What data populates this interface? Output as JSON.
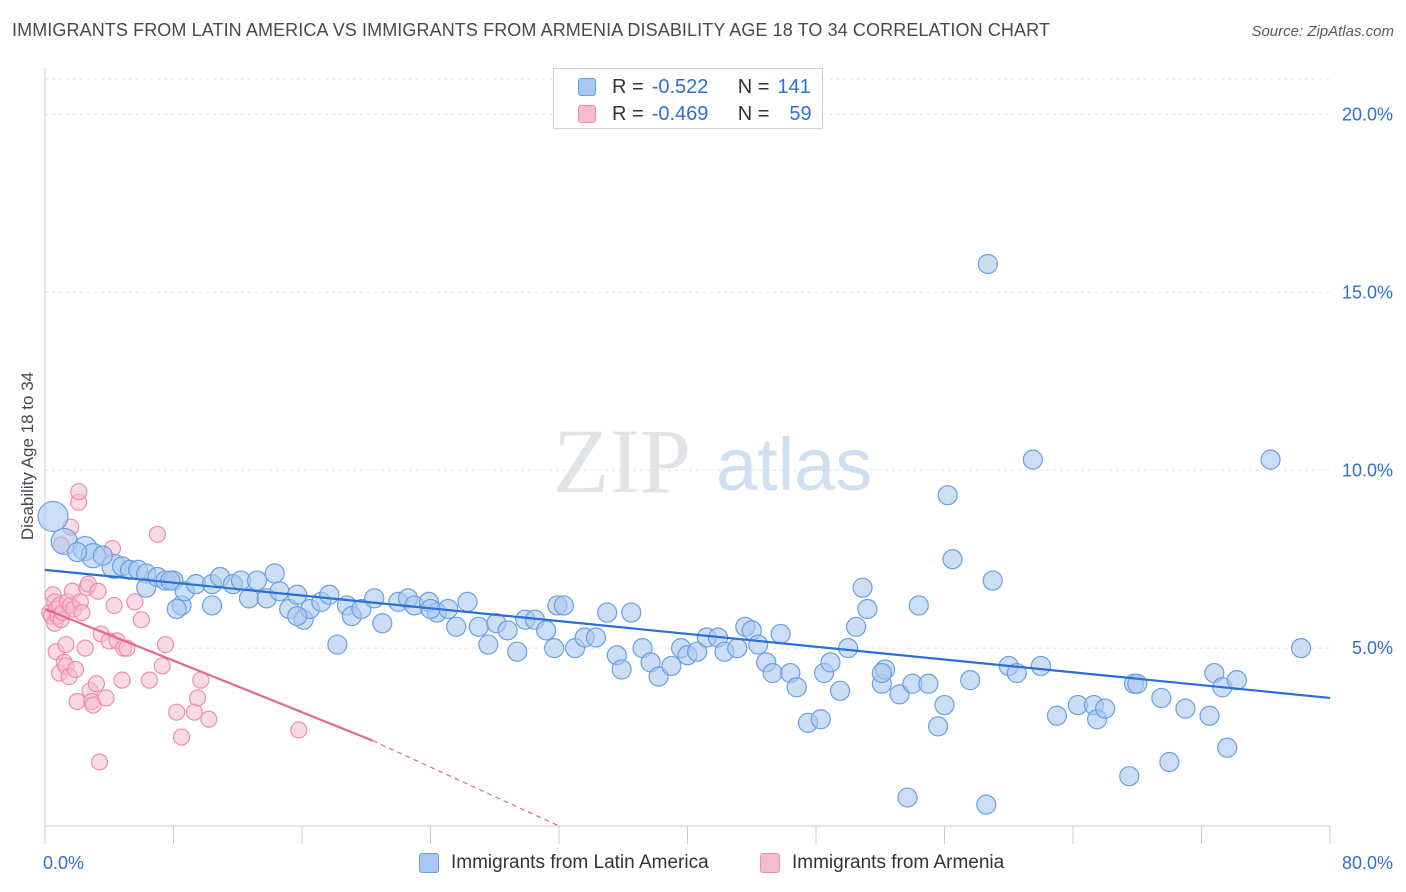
{
  "header": {
    "title": "IMMIGRANTS FROM LATIN AMERICA VS IMMIGRANTS FROM ARMENIA DISABILITY AGE 18 TO 34 CORRELATION CHART",
    "source": "Source: ZipAtlas.com"
  },
  "legend_stats": {
    "blue": {
      "r_label": "R =",
      "r_value": "-0.522",
      "n_label": "N =",
      "n_value": "141"
    },
    "pink": {
      "r_label": "R =",
      "r_value": "-0.469",
      "n_label": "N =",
      "n_value": "59"
    }
  },
  "colors": {
    "blue_fill": "#a9c8f0",
    "blue_stroke": "#6b9fe0",
    "blue_line": "#2a6fd6",
    "pink_fill": "#f6bccd",
    "pink_stroke": "#ec8fac",
    "pink_line": "#e2688f",
    "axis_label": "#2f6fd0",
    "grid": "#dde1e6"
  },
  "watermark": {
    "zip": "ZIP",
    "atlas": "atlas"
  },
  "chart_data": {
    "type": "scatter",
    "title": "IMMIGRANTS FROM LATIN AMERICA VS IMMIGRANTS FROM ARMENIA DISABILITY AGE 18 TO 34 CORRELATION CHART",
    "xlabel": "",
    "ylabel": "Disability Age 18 to 34",
    "xlim": [
      0,
      80
    ],
    "ylim": [
      0,
      21
    ],
    "x_tick_labels": [
      "0.0%",
      "80.0%"
    ],
    "y_ticks": [
      5,
      10,
      15,
      20
    ],
    "y_tick_labels": [
      "5.0%",
      "10.0%",
      "15.0%",
      "20.0%"
    ],
    "grid": "horizontal dashed",
    "legend_position": "bottom",
    "series": [
      {
        "name": "Immigrants from Latin America",
        "color": "#a9c8f0",
        "trend": {
          "x": [
            0,
            80
          ],
          "y": [
            7.2,
            3.6
          ]
        },
        "points": [
          [
            0.5,
            8.7
          ],
          [
            1.2,
            8.0
          ],
          [
            2.5,
            7.8
          ],
          [
            3.0,
            7.6
          ],
          [
            4.3,
            7.3
          ],
          [
            4.8,
            7.3
          ],
          [
            5.3,
            7.2
          ],
          [
            5.8,
            7.2
          ],
          [
            6.3,
            7.1
          ],
          [
            6.3,
            6.7
          ],
          [
            7.0,
            7.0
          ],
          [
            7.5,
            6.9
          ],
          [
            8.0,
            6.9
          ],
          [
            8.5,
            6.2
          ],
          [
            8.7,
            6.6
          ],
          [
            9.4,
            6.8
          ],
          [
            10.4,
            6.8
          ],
          [
            10.4,
            6.2
          ],
          [
            10.9,
            7.0
          ],
          [
            11.7,
            6.8
          ],
          [
            12.2,
            6.9
          ],
          [
            12.7,
            6.4
          ],
          [
            13.2,
            6.9
          ],
          [
            13.8,
            6.4
          ],
          [
            14.3,
            7.1
          ],
          [
            14.6,
            6.6
          ],
          [
            15.2,
            6.1
          ],
          [
            15.7,
            6.5
          ],
          [
            16.1,
            5.8
          ],
          [
            16.5,
            6.1
          ],
          [
            17.2,
            6.3
          ],
          [
            17.7,
            6.5
          ],
          [
            18.2,
            5.1
          ],
          [
            18.8,
            6.2
          ],
          [
            19.1,
            5.9
          ],
          [
            19.7,
            6.1
          ],
          [
            20.5,
            6.4
          ],
          [
            21.0,
            5.7
          ],
          [
            22.0,
            6.3
          ],
          [
            22.6,
            6.4
          ],
          [
            23.0,
            6.2
          ],
          [
            23.9,
            6.3
          ],
          [
            24.4,
            6.0
          ],
          [
            25.1,
            6.1
          ],
          [
            25.6,
            5.6
          ],
          [
            26.3,
            6.3
          ],
          [
            27.0,
            5.6
          ],
          [
            27.6,
            5.1
          ],
          [
            28.1,
            5.7
          ],
          [
            28.8,
            5.5
          ],
          [
            29.4,
            4.9
          ],
          [
            29.9,
            5.8
          ],
          [
            30.5,
            5.8
          ],
          [
            31.2,
            5.5
          ],
          [
            31.7,
            5.0
          ],
          [
            31.9,
            6.2
          ],
          [
            32.3,
            6.2
          ],
          [
            33.0,
            5.0
          ],
          [
            33.6,
            5.3
          ],
          [
            34.3,
            5.3
          ],
          [
            35.0,
            6.0
          ],
          [
            35.6,
            4.8
          ],
          [
            35.9,
            4.4
          ],
          [
            36.5,
            6.0
          ],
          [
            37.2,
            5.0
          ],
          [
            37.7,
            4.6
          ],
          [
            38.2,
            4.2
          ],
          [
            39.0,
            4.5
          ],
          [
            39.6,
            5.0
          ],
          [
            40.0,
            4.8
          ],
          [
            40.6,
            4.9
          ],
          [
            41.2,
            5.3
          ],
          [
            41.9,
            5.3
          ],
          [
            42.3,
            4.9
          ],
          [
            43.1,
            5.0
          ],
          [
            43.6,
            5.6
          ],
          [
            44.0,
            5.5
          ],
          [
            44.9,
            4.6
          ],
          [
            45.3,
            4.3
          ],
          [
            45.8,
            5.4
          ],
          [
            46.4,
            4.3
          ],
          [
            46.8,
            3.9
          ],
          [
            47.5,
            2.9
          ],
          [
            48.3,
            3.0
          ],
          [
            48.5,
            4.3
          ],
          [
            48.9,
            4.6
          ],
          [
            49.5,
            3.8
          ],
          [
            50.0,
            5.0
          ],
          [
            50.5,
            5.6
          ],
          [
            50.9,
            6.7
          ],
          [
            51.2,
            6.1
          ],
          [
            52.1,
            4.0
          ],
          [
            52.3,
            4.4
          ],
          [
            53.2,
            3.7
          ],
          [
            54.0,
            4.0
          ],
          [
            54.4,
            6.2
          ],
          [
            55.0,
            4.0
          ],
          [
            55.6,
            2.8
          ],
          [
            56.0,
            3.4
          ],
          [
            56.2,
            9.3
          ],
          [
            56.5,
            7.5
          ],
          [
            57.6,
            4.1
          ],
          [
            58.7,
            15.8
          ],
          [
            59.0,
            6.9
          ],
          [
            60.0,
            4.5
          ],
          [
            60.5,
            4.3
          ],
          [
            61.5,
            10.3
          ],
          [
            62.0,
            4.5
          ],
          [
            63.0,
            3.1
          ],
          [
            64.3,
            3.4
          ],
          [
            65.3,
            3.4
          ],
          [
            65.5,
            3.0
          ],
          [
            66.0,
            3.3
          ],
          [
            67.5,
            1.4
          ],
          [
            67.8,
            4.0
          ],
          [
            68.0,
            4.0
          ],
          [
            69.5,
            3.6
          ],
          [
            70.0,
            1.8
          ],
          [
            71.0,
            3.3
          ],
          [
            72.5,
            3.1
          ],
          [
            72.8,
            4.3
          ],
          [
            73.3,
            3.9
          ],
          [
            73.6,
            2.2
          ],
          [
            74.2,
            4.1
          ],
          [
            76.3,
            10.3
          ],
          [
            78.2,
            5.0
          ],
          [
            53.7,
            0.8
          ],
          [
            58.6,
            0.6
          ],
          [
            52.1,
            4.3
          ],
          [
            44.4,
            5.1
          ],
          [
            24.0,
            6.1
          ],
          [
            15.7,
            5.9
          ],
          [
            7.8,
            6.9
          ],
          [
            8.2,
            6.1
          ],
          [
            3.6,
            7.6
          ],
          [
            2.0,
            7.7
          ]
        ]
      },
      {
        "name": "Immigrants from Armenia",
        "color": "#f6bccd",
        "trend": {
          "x": [
            0,
            20.4
          ],
          "y": [
            6.1,
            2.4
          ]
        },
        "trend_extension": {
          "x": [
            20.4,
            32.0
          ],
          "y": [
            2.4,
            0.0
          ]
        },
        "points": [
          [
            0.3,
            6.0
          ],
          [
            0.4,
            5.9
          ],
          [
            0.5,
            6.5
          ],
          [
            0.6,
            6.3
          ],
          [
            0.6,
            5.7
          ],
          [
            0.7,
            4.9
          ],
          [
            0.7,
            6.1
          ],
          [
            0.8,
            5.9
          ],
          [
            0.9,
            6.2
          ],
          [
            0.9,
            4.3
          ],
          [
            1.0,
            7.9
          ],
          [
            1.0,
            5.8
          ],
          [
            1.1,
            6.0
          ],
          [
            1.2,
            4.6
          ],
          [
            1.3,
            5.1
          ],
          [
            1.3,
            4.5
          ],
          [
            1.4,
            6.3
          ],
          [
            1.5,
            4.2
          ],
          [
            1.6,
            8.4
          ],
          [
            1.6,
            6.2
          ],
          [
            1.7,
            6.6
          ],
          [
            1.8,
            6.1
          ],
          [
            1.9,
            4.4
          ],
          [
            2.0,
            3.5
          ],
          [
            2.1,
            9.1
          ],
          [
            2.1,
            9.4
          ],
          [
            2.2,
            6.3
          ],
          [
            2.3,
            6.0
          ],
          [
            2.5,
            5.0
          ],
          [
            2.6,
            6.7
          ],
          [
            2.7,
            6.8
          ],
          [
            2.8,
            3.8
          ],
          [
            2.9,
            3.5
          ],
          [
            3.0,
            3.4
          ],
          [
            3.2,
            4.0
          ],
          [
            3.3,
            6.6
          ],
          [
            3.4,
            1.8
          ],
          [
            3.5,
            5.4
          ],
          [
            3.8,
            3.6
          ],
          [
            4.0,
            5.2
          ],
          [
            4.2,
            7.8
          ],
          [
            4.3,
            6.2
          ],
          [
            4.5,
            5.2
          ],
          [
            4.8,
            4.1
          ],
          [
            4.9,
            5.0
          ],
          [
            5.1,
            5.0
          ],
          [
            5.6,
            6.3
          ],
          [
            6.0,
            5.8
          ],
          [
            6.5,
            4.1
          ],
          [
            7.0,
            8.2
          ],
          [
            7.3,
            4.5
          ],
          [
            7.5,
            5.1
          ],
          [
            8.2,
            3.2
          ],
          [
            8.5,
            2.5
          ],
          [
            9.3,
            3.2
          ],
          [
            9.5,
            3.6
          ],
          [
            9.7,
            4.1
          ],
          [
            10.2,
            3.0
          ],
          [
            15.8,
            2.7
          ]
        ]
      }
    ]
  },
  "legend_bottom": {
    "blue_label": "Immigrants from Latin America",
    "pink_label": "Immigrants from Armenia"
  }
}
